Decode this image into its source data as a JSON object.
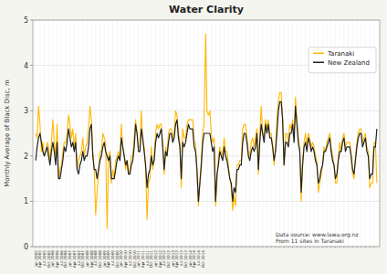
{
  "chart_data": {
    "type": "line",
    "title": "Water Clarity",
    "ylabel": "Monthly Average of Black Disc, m",
    "annotation": "Data source: www.lawa.org.nz\nFrom 11 sites in Taranaki",
    "ylim": [
      0,
      5
    ],
    "yticks": [
      0,
      1,
      2,
      3,
      4,
      5
    ],
    "grid": true,
    "legend": "upper right",
    "categories": [
      "Jan 2005",
      null,
      null,
      "Apr 2005",
      null,
      null,
      "Jul 2005",
      null,
      null,
      "Oct 2005",
      null,
      null,
      "Jan 2006",
      null,
      null,
      "Apr 2006",
      null,
      null,
      "Jul 2006",
      null,
      null,
      "Oct 2006",
      null,
      null,
      "Jan 2007",
      null,
      null,
      "Apr 2007",
      null,
      null,
      "Jul 2007",
      null,
      null,
      "Oct 2007",
      null,
      null,
      "Jan 2008",
      null,
      null,
      "Apr 2008",
      null,
      null,
      "Jul 2008",
      null,
      null,
      "Oct 2008",
      null,
      null,
      "Jan 2009",
      null,
      null,
      "Apr 2009",
      null,
      null,
      "Jul 2009",
      null,
      null,
      "Oct 2009",
      null,
      null,
      "Jan 2010",
      null,
      null,
      "Apr 2010",
      null,
      null,
      "Jul 2010",
      null,
      null,
      "Oct 2010",
      null,
      null,
      "Jan 2011",
      null,
      null,
      "Apr 2011",
      null,
      null,
      "Jul 2011",
      null,
      null,
      "Oct 2011",
      null,
      null,
      "Jan 2012",
      null,
      null,
      "Apr 2012",
      null,
      null,
      "Jul 2012",
      null,
      null,
      "Oct 2012",
      null,
      null,
      "Jan 2013",
      null,
      null,
      "Apr 2013",
      null,
      null,
      "Jul 2013",
      null,
      null,
      "Oct 2013",
      null,
      null,
      "Jan 2014",
      null,
      null,
      "Apr 2014",
      null,
      null,
      "Jul 2014",
      null,
      null,
      "Oct 2014",
      null,
      null,
      null,
      null,
      null,
      null,
      null,
      null,
      null,
      null,
      null,
      null,
      null,
      null,
      null,
      null,
      null,
      null,
      null,
      null,
      null,
      null,
      null,
      null,
      null,
      null,
      null,
      null,
      null,
      null,
      null,
      null,
      null,
      null,
      null,
      null,
      null,
      null,
      null,
      null,
      null,
      null,
      null,
      null,
      null,
      null,
      null,
      null,
      null,
      null,
      null,
      null,
      null,
      null,
      null,
      null,
      null,
      null,
      null,
      null,
      null,
      null,
      null,
      null,
      null,
      null,
      null,
      null,
      null,
      null,
      null,
      null,
      null,
      null,
      null,
      null,
      null,
      null,
      null,
      null,
      null,
      null,
      null,
      null,
      null,
      null,
      null,
      null,
      null,
      null,
      null,
      null,
      null,
      null,
      null,
      null,
      null,
      null,
      null,
      null,
      null,
      null,
      null,
      null,
      null,
      null,
      null,
      null,
      null,
      null,
      null,
      null,
      null,
      null,
      null,
      null,
      null,
      null,
      null,
      null,
      null,
      null
    ],
    "series": [
      {
        "name": "Taranaki",
        "color": "#FFB800",
        "values": [
          2.5,
          2.4,
          3.1,
          2.7,
          2.1,
          2.3,
          2.0,
          2.1,
          2.3,
          2.2,
          1.9,
          2.3,
          2.8,
          2.3,
          2.0,
          2.7,
          1.5,
          1.7,
          1.8,
          2.1,
          2.3,
          2.3,
          2.5,
          2.9,
          2.7,
          2.4,
          2.6,
          2.2,
          2.5,
          1.7,
          1.9,
          2.0,
          2.1,
          2.4,
          2.0,
          2.2,
          2.3,
          2.6,
          3.1,
          2.8,
          2.1,
          1.7,
          0.7,
          1.2,
          1.6,
          2.1,
          2.1,
          2.5,
          2.4,
          2.3,
          0.4,
          2.0,
          2.1,
          1.4,
          1.7,
          1.5,
          1.9,
          2.0,
          2.1,
          1.9,
          2.7,
          2.2,
          2.0,
          1.7,
          1.9,
          1.6,
          1.7,
          2.0,
          2.0,
          2.4,
          2.8,
          2.5,
          2.2,
          2.2,
          3.0,
          2.3,
          2.2,
          1.7,
          0.6,
          1.4,
          1.5,
          2.2,
          1.7,
          2.0,
          2.5,
          2.7,
          2.6,
          2.7,
          2.7,
          2.2,
          1.6,
          2.2,
          2.0,
          2.5,
          2.6,
          2.6,
          2.4,
          2.5,
          3.0,
          2.9,
          2.5,
          2.3,
          1.3,
          2.6,
          2.4,
          2.4,
          2.7,
          2.8,
          2.8,
          2.8,
          2.8,
          2.3,
          2.3,
          1.6,
          0.9,
          1.4,
          1.9,
          2.5,
          2.7,
          4.7,
          3.0,
          2.9,
          3.0,
          2.5,
          2.3,
          2.4,
          0.9,
          1.4,
          2.0,
          2.2,
          2.1,
          2.0,
          2.4,
          2.1,
          2.1,
          1.8,
          1.5,
          1.3,
          0.8,
          1.1,
          0.9,
          1.8,
          1.8,
          1.9,
          1.9,
          2.6,
          2.7,
          2.7,
          2.4,
          2.1,
          2.0,
          2.3,
          2.4,
          2.2,
          2.4,
          2.6,
          1.6,
          2.5,
          3.1,
          2.5,
          2.4,
          2.8,
          2.6,
          2.8,
          2.5,
          2.5,
          2.2,
          1.8,
          2.2,
          2.8,
          3.2,
          3.4,
          3.4,
          2.8,
          1.8,
          2.5,
          2.5,
          2.3,
          2.7,
          2.6,
          2.8,
          2.4,
          3.3,
          2.8,
          2.4,
          2.1,
          1.0,
          1.9,
          2.3,
          2.5,
          2.2,
          2.5,
          2.4,
          2.2,
          2.3,
          2.2,
          2.0,
          1.9,
          1.2,
          1.4,
          1.6,
          1.8,
          2.2,
          2.1,
          2.3,
          2.4,
          2.5,
          2.2,
          2.0,
          1.8,
          1.4,
          1.4,
          2.0,
          2.3,
          2.1,
          2.4,
          2.5,
          2.2,
          2.3,
          2.3,
          2.3,
          2.0,
          1.6,
          1.5,
          2.0,
          2.3,
          2.5,
          2.6,
          2.6,
          2.3,
          2.4,
          2.5,
          2.2,
          2.1,
          1.3,
          1.4,
          1.4,
          2.3,
          2.3,
          1.4
        ]
      },
      {
        "name": "New Zealand",
        "color": "#222222",
        "values": [
          1.9,
          2.2,
          2.4,
          2.5,
          2.3,
          2.1,
          2.0,
          2.1,
          2.2,
          2.0,
          1.8,
          2.1,
          2.3,
          2.1,
          1.8,
          2.3,
          1.5,
          1.5,
          1.7,
          1.9,
          2.2,
          2.1,
          2.3,
          2.6,
          2.4,
          2.2,
          2.3,
          2.1,
          2.3,
          1.7,
          1.6,
          1.8,
          1.9,
          2.1,
          1.9,
          2.0,
          2.0,
          2.2,
          2.6,
          2.7,
          2.0,
          1.7,
          1.7,
          1.5,
          1.7,
          1.9,
          2.0,
          2.2,
          2.3,
          2.1,
          2.0,
          1.9,
          2.0,
          1.5,
          1.5,
          1.5,
          1.7,
          1.9,
          2.0,
          1.9,
          2.4,
          2.2,
          2.0,
          1.8,
          1.9,
          1.6,
          1.6,
          1.8,
          1.9,
          2.2,
          2.7,
          2.5,
          2.1,
          2.1,
          2.6,
          2.4,
          2.1,
          1.8,
          1.3,
          1.6,
          1.7,
          2.0,
          1.8,
          1.9,
          2.3,
          2.5,
          2.4,
          2.5,
          2.6,
          2.2,
          1.7,
          2.1,
          2.0,
          2.3,
          2.5,
          2.5,
          2.3,
          2.4,
          2.7,
          2.8,
          2.4,
          2.2,
          1.5,
          2.3,
          2.2,
          2.3,
          2.5,
          2.7,
          2.6,
          2.6,
          2.6,
          2.2,
          2.1,
          1.7,
          1.0,
          1.4,
          1.8,
          2.3,
          2.5,
          2.5,
          2.5,
          2.5,
          2.5,
          2.3,
          2.1,
          2.2,
          1.0,
          1.6,
          1.8,
          2.1,
          2.0,
          1.9,
          2.2,
          2.0,
          1.9,
          1.7,
          1.5,
          1.4,
          1.0,
          1.3,
          1.2,
          1.7,
          1.7,
          1.8,
          1.8,
          2.3,
          2.5,
          2.5,
          2.3,
          2.0,
          1.9,
          2.1,
          2.2,
          2.1,
          2.2,
          2.5,
          1.7,
          2.3,
          2.7,
          2.5,
          2.3,
          2.7,
          2.5,
          2.7,
          2.4,
          2.4,
          2.2,
          1.9,
          2.1,
          2.5,
          3.0,
          3.2,
          3.2,
          2.8,
          1.8,
          2.3,
          2.3,
          2.2,
          2.5,
          2.5,
          2.7,
          2.3,
          3.1,
          2.7,
          2.3,
          2.1,
          1.2,
          1.8,
          2.2,
          2.3,
          2.1,
          2.4,
          2.3,
          2.1,
          2.2,
          2.1,
          1.9,
          1.8,
          1.4,
          1.5,
          1.7,
          1.8,
          2.1,
          2.1,
          2.2,
          2.3,
          2.4,
          2.1,
          1.9,
          1.8,
          1.5,
          1.6,
          1.9,
          2.1,
          2.1,
          2.3,
          2.4,
          2.1,
          2.2,
          2.2,
          2.2,
          2.0,
          1.7,
          1.6,
          1.9,
          2.2,
          2.4,
          2.5,
          2.5,
          2.2,
          2.3,
          2.4,
          2.1,
          2.0,
          1.5,
          1.6,
          1.6,
          2.2,
          2.2,
          2.6
        ]
      }
    ]
  }
}
